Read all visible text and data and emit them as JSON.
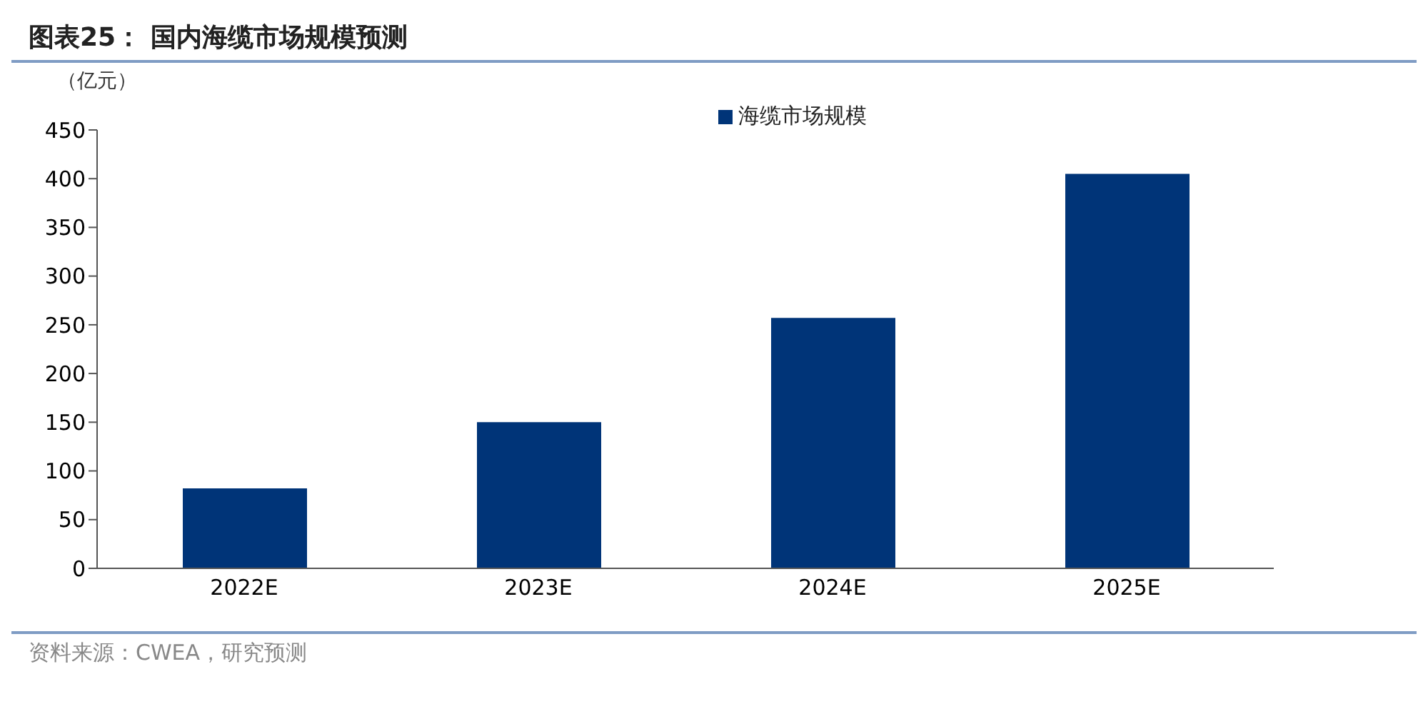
{
  "chart_data": {
    "type": "bar",
    "title": "图表25： 国内海缆市场规模预测",
    "ylabel": "（亿元）",
    "annotations": [
      "资料来源：CWEA，研究预测"
    ],
    "categories": [
      "2022E",
      "2023E",
      "2024E",
      "2025E"
    ],
    "series": [
      {
        "name": "海缆市场规模",
        "color": "#003478",
        "values": [
          82,
          150,
          257,
          405
        ]
      }
    ],
    "ylim": [
      0,
      450
    ],
    "yticks": [
      0,
      50,
      100,
      150,
      200,
      250,
      300,
      350,
      400,
      450
    ],
    "grid": false,
    "legend": "top"
  }
}
